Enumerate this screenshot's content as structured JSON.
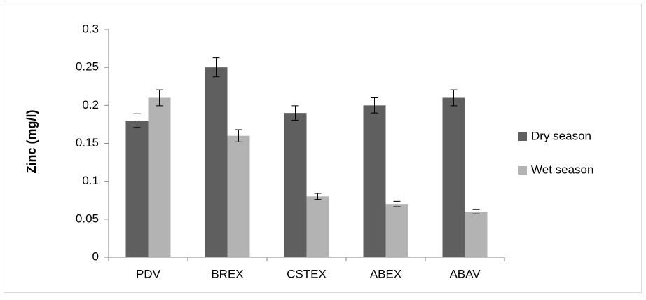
{
  "chart_data": {
    "type": "bar",
    "title": "",
    "xlabel": "",
    "ylabel": "Zinc (mg/l)",
    "ylim": [
      0,
      0.3
    ],
    "yticks": [
      "0",
      "0.05",
      "0.1",
      "0.15",
      "0.2",
      "0.25",
      "0.3"
    ],
    "grid": false,
    "legend_position": "right",
    "categories": [
      "PDV",
      "BREX",
      "CSTEX",
      "ABEX",
      "ABAV"
    ],
    "series": [
      {
        "name": "Dry season",
        "color": "#5f5f5f",
        "values": [
          0.18,
          0.25,
          0.19,
          0.2,
          0.21
        ],
        "errors": [
          0.009,
          0.0125,
          0.0095,
          0.01,
          0.0105
        ]
      },
      {
        "name": "Wet season",
        "color": "#b3b3b3",
        "values": [
          0.21,
          0.16,
          0.08,
          0.07,
          0.06
        ],
        "errors": [
          0.0105,
          0.008,
          0.004,
          0.0035,
          0.003
        ]
      }
    ]
  }
}
